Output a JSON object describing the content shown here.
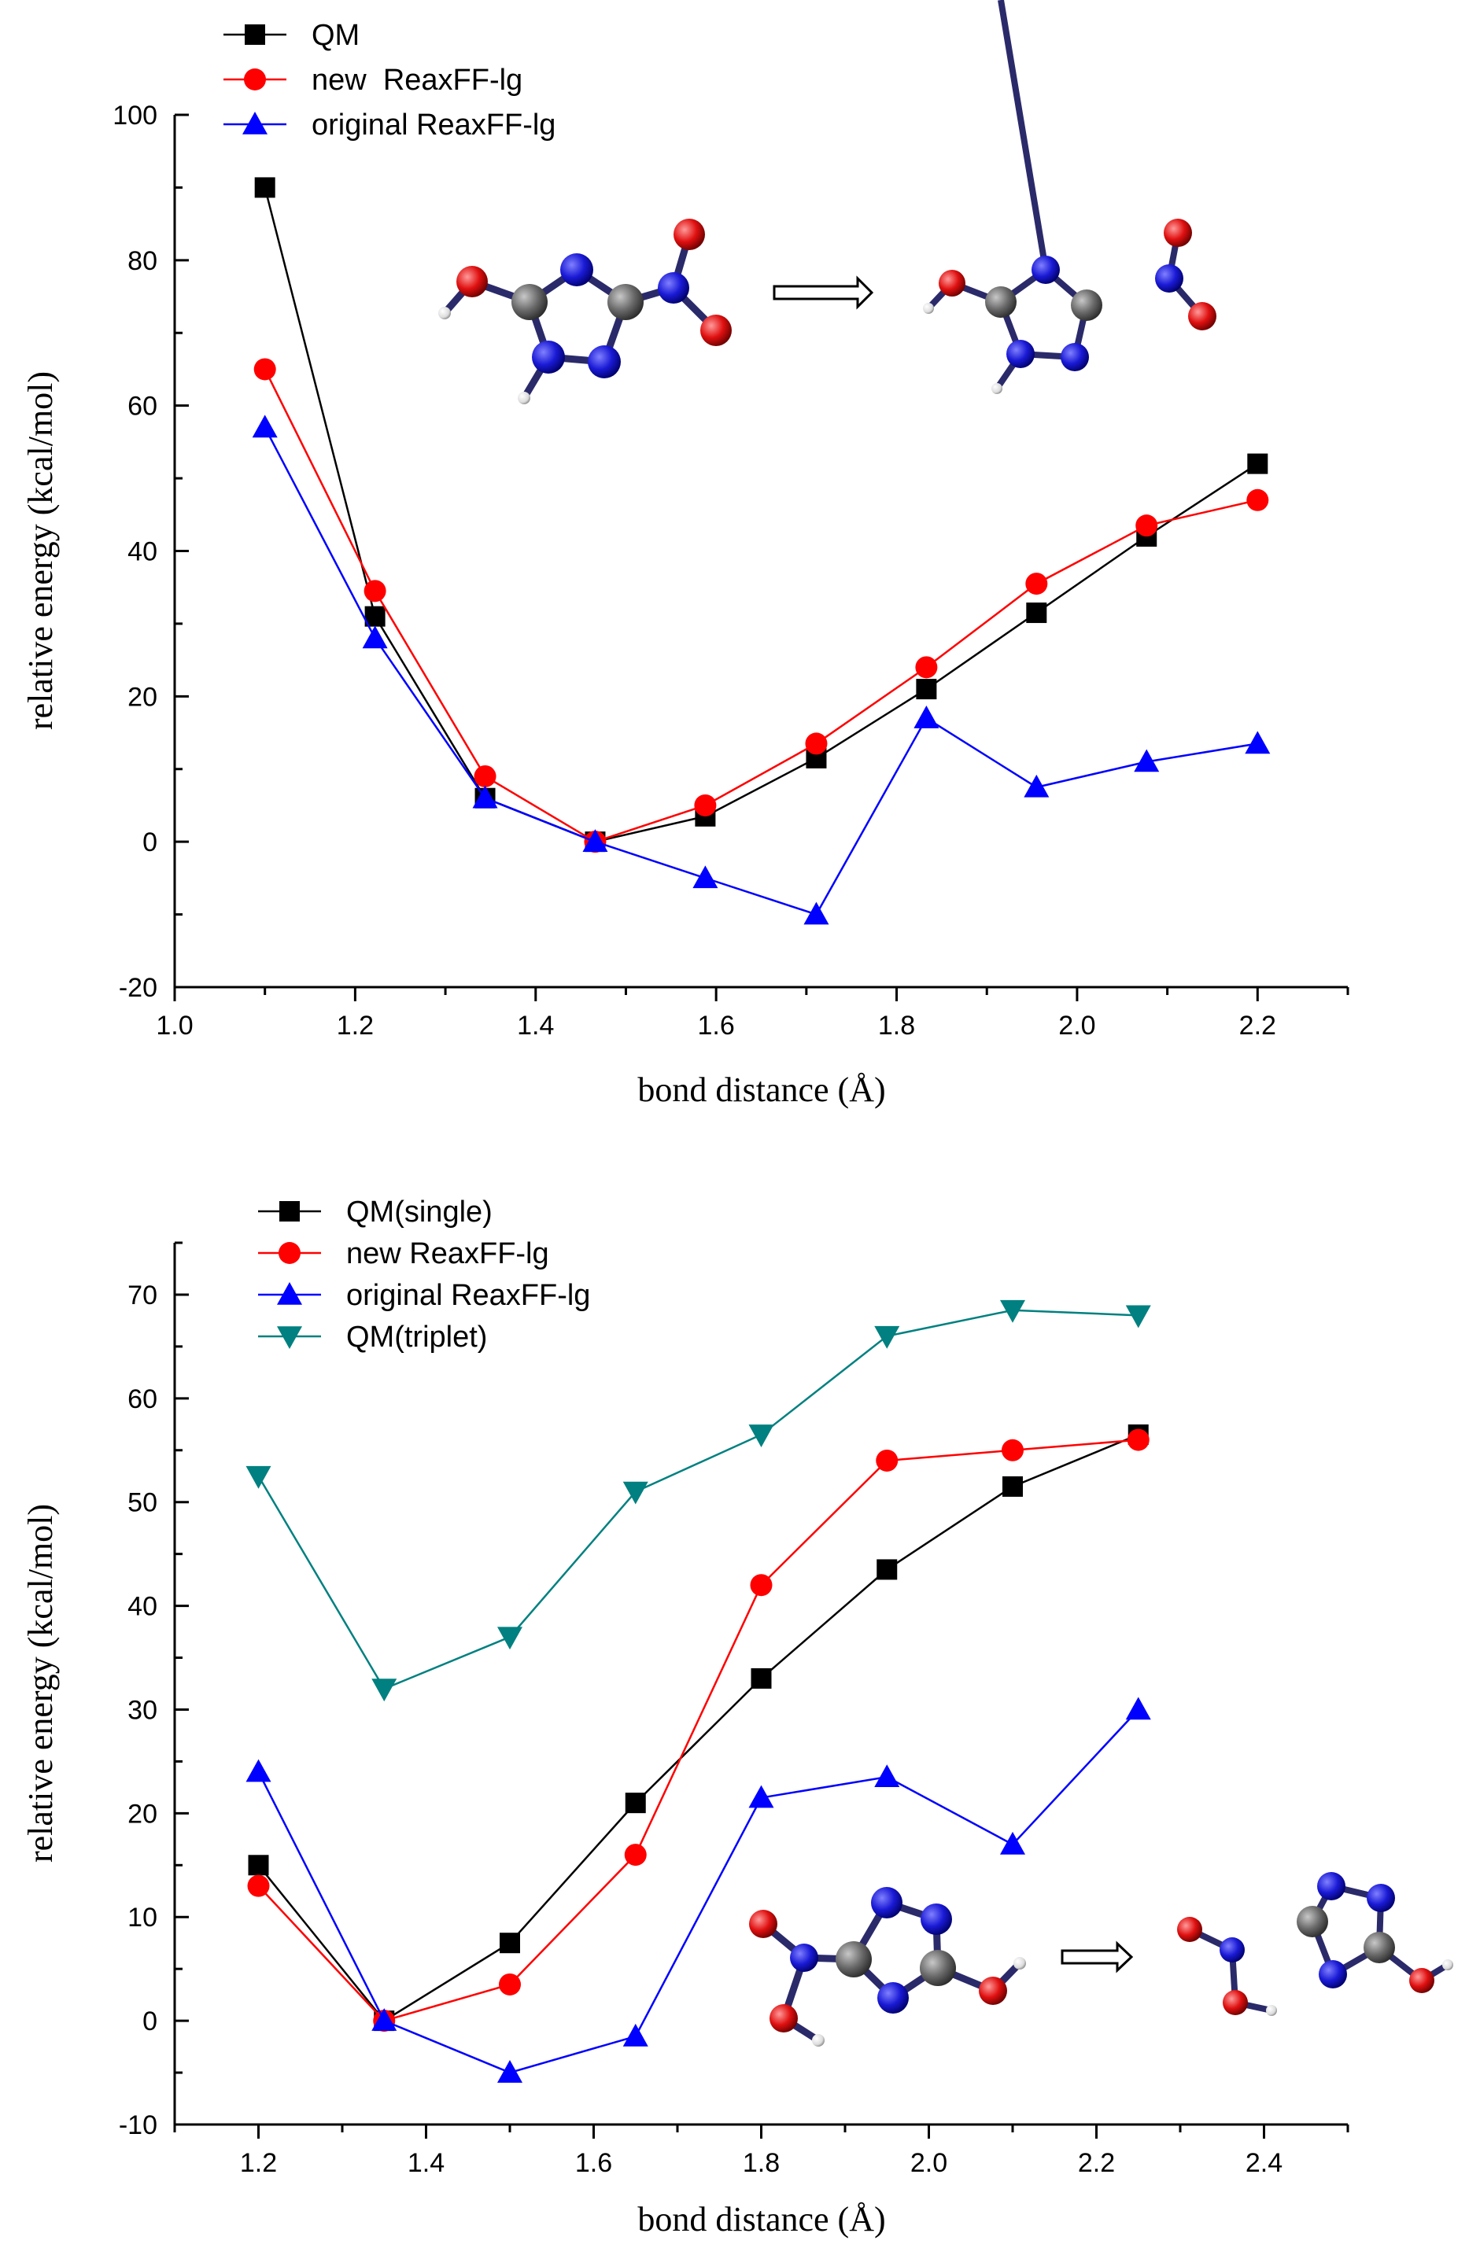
{
  "chart_data": [
    {
      "type": "line",
      "title": "",
      "xlabel": "bond distance (Å)",
      "ylabel": "relative energy (kcal/mol)",
      "xlim": [
        1.0,
        2.3
      ],
      "ylim": [
        -20,
        100
      ],
      "xticks": [
        "1.0",
        "1.2",
        "1.4",
        "1.6",
        "1.8",
        "2.0",
        "2.2"
      ],
      "yticks": [
        "-20",
        "0",
        "20",
        "40",
        "60",
        "80",
        "100"
      ],
      "x": [
        1.1,
        1.222,
        1.344,
        1.466,
        1.588,
        1.711,
        1.833,
        1.955,
        2.077,
        2.2
      ],
      "series": [
        {
          "name": "QM",
          "color": "#000000",
          "marker": "square",
          "values": [
            90,
            31,
            6,
            0,
            3.5,
            11.5,
            21,
            31.5,
            42,
            52
          ]
        },
        {
          "name": "new  ReaxFF-lg",
          "color": "#ff0000",
          "marker": "circle",
          "values": [
            65,
            34.5,
            9,
            0,
            5,
            13.5,
            24,
            35.5,
            43.5,
            47
          ]
        },
        {
          "name": "original ReaxFF-lg",
          "color": "#0000ff",
          "marker": "triangle-up",
          "values": [
            57,
            28,
            6,
            0,
            -5,
            -10,
            17,
            7.5,
            11,
            13.5
          ]
        }
      ],
      "legend": "top-left",
      "inset": "molecule-dissociation-NO2-from-ring"
    },
    {
      "type": "line",
      "title": "",
      "xlabel": "bond distance (Å)",
      "ylabel": "relative energy (kcal/mol)",
      "xlim": [
        1.1,
        2.5
      ],
      "ylim": [
        -10,
        75
      ],
      "xticks": [
        "1.2",
        "1.4",
        "1.6",
        "1.8",
        "2.0",
        "2.2",
        "2.4"
      ],
      "yticks": [
        "-10",
        "0",
        "10",
        "20",
        "30",
        "40",
        "50",
        "60",
        "70"
      ],
      "x": [
        1.2,
        1.35,
        1.5,
        1.65,
        1.8,
        1.95,
        2.1,
        2.25
      ],
      "series": [
        {
          "name": "QM(single)",
          "color": "#000000",
          "marker": "square",
          "values": [
            15,
            0,
            7.5,
            21,
            33,
            43.5,
            51.5,
            56.5
          ]
        },
        {
          "name": "new ReaxFF-lg",
          "color": "#ff0000",
          "marker": "circle",
          "values": [
            13,
            0,
            3.5,
            16,
            42,
            54,
            55,
            56
          ]
        },
        {
          "name": "original ReaxFF-lg",
          "color": "#0000ff",
          "marker": "triangle-up",
          "values": [
            24,
            0,
            -5,
            -1.5,
            21.5,
            23.5,
            17,
            30
          ]
        },
        {
          "name": "QM(triplet)",
          "color": "#008080",
          "marker": "triangle-down",
          "values": [
            52.5,
            32,
            37,
            51,
            56.5,
            66,
            68.5,
            68
          ]
        }
      ],
      "legend": "top-left",
      "inset": "molecule-dissociation-HONO-from-ring"
    }
  ]
}
